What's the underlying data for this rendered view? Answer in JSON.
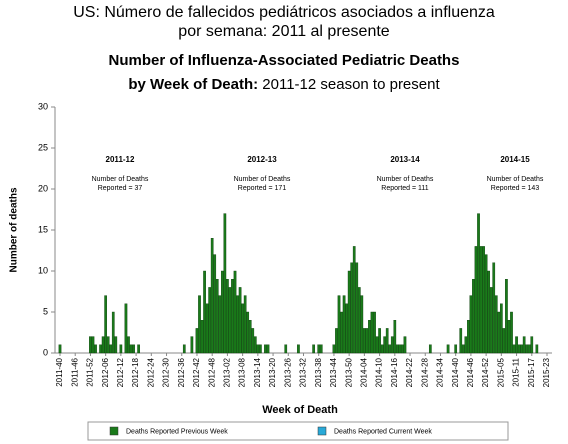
{
  "chart_data": {
    "type": "bar",
    "title_lines": [
      "US: Número de fallecidos pediátricos asociados a influenza",
      "por semana: 2011 al presente"
    ],
    "title": "Number of Influenza-Associated Pediatric Deaths",
    "subtitle_bold": "by Week of Death:",
    "subtitle": "2011-12 season to present",
    "y_label": "Number of deaths",
    "x_label": "Week of Death",
    "ylim": [
      0,
      30
    ],
    "yticks": [
      0,
      5,
      10,
      15,
      20,
      25,
      30
    ],
    "categories": [
      "2011-40",
      null,
      null,
      null,
      null,
      null,
      "2011-46",
      null,
      null,
      null,
      null,
      null,
      "2011-52",
      null,
      null,
      null,
      null,
      null,
      "2012-06",
      null,
      null,
      null,
      null,
      null,
      "2012-12",
      null,
      null,
      null,
      null,
      null,
      "2012-18",
      null,
      null,
      null,
      null,
      null,
      "2012-24",
      null,
      null,
      null,
      null,
      null,
      "2012-30",
      null,
      null,
      null,
      null,
      null,
      "2012-36",
      null,
      null,
      null,
      null,
      null,
      "2012-42",
      null,
      null,
      null,
      null,
      null,
      "2012-48",
      null,
      null,
      null,
      null,
      null,
      "2013-02",
      null,
      null,
      null,
      null,
      null,
      "2013-08",
      null,
      null,
      null,
      null,
      null,
      "2013-14",
      null,
      null,
      null,
      null,
      null,
      "2013-20",
      null,
      null,
      null,
      null,
      null,
      "2013-26",
      null,
      null,
      null,
      null,
      null,
      "2013-32",
      null,
      null,
      null,
      null,
      null,
      "2013-38",
      null,
      null,
      null,
      null,
      null,
      "2013-44",
      null,
      null,
      null,
      null,
      null,
      "2013-50",
      null,
      null,
      null,
      null,
      null,
      "2014-04",
      null,
      null,
      null,
      null,
      null,
      "2014-10",
      null,
      null,
      null,
      null,
      null,
      "2014-16",
      null,
      null,
      null,
      null,
      null,
      "2014-22",
      null,
      null,
      null,
      null,
      null,
      "2014-28",
      null,
      null,
      null,
      null,
      null,
      "2014-34",
      null,
      null,
      null,
      null,
      null,
      "2014-40",
      null,
      null,
      null,
      null,
      null,
      "2014-46",
      null,
      null,
      null,
      null,
      null,
      "2014-52",
      null,
      null,
      null,
      null,
      null,
      "2015-05",
      null,
      null,
      null,
      null,
      null,
      "2015-11",
      null,
      null,
      null,
      null,
      null,
      "2015-17",
      null,
      null,
      null,
      null,
      null,
      "2015-23"
    ],
    "series": [
      {
        "name": "Deaths Reported Previous Week",
        "color": "#1a7a1a",
        "values": [
          1,
          0,
          0,
          0,
          0,
          0,
          0,
          0,
          0,
          0,
          0,
          0,
          2,
          2,
          1,
          0,
          1,
          2,
          7,
          2,
          1,
          5,
          2,
          0,
          1,
          0,
          6,
          2,
          1,
          1,
          0,
          1,
          0,
          0,
          0,
          0,
          0,
          0,
          0,
          0,
          0,
          0,
          0,
          0,
          0,
          0,
          0,
          0,
          0,
          1,
          0,
          0,
          2,
          0,
          3,
          7,
          4,
          10,
          6,
          8,
          14,
          12,
          9,
          7,
          10,
          17,
          9,
          8,
          9,
          10,
          7,
          8,
          6,
          7,
          5,
          4,
          3,
          2,
          1,
          1,
          0,
          1,
          1,
          0,
          0,
          0,
          0,
          0,
          0,
          1,
          0,
          0,
          0,
          0,
          1,
          0,
          0,
          0,
          0,
          0,
          1,
          0,
          1,
          1,
          0,
          0,
          0,
          0,
          1,
          3,
          7,
          5,
          7,
          6,
          10,
          11,
          13,
          11,
          8,
          7,
          3,
          3,
          4,
          5,
          5,
          2,
          3,
          1,
          2,
          3,
          1,
          2,
          4,
          1,
          1,
          1,
          2,
          0,
          0,
          0,
          0,
          0,
          0,
          0,
          0,
          0,
          1,
          0,
          0,
          0,
          0,
          0,
          0,
          1,
          0,
          0,
          1,
          0,
          3,
          1,
          2,
          4,
          7,
          9,
          13,
          17,
          13,
          13,
          12,
          10,
          8,
          11,
          7,
          5,
          6,
          3,
          9,
          4,
          5,
          1,
          2,
          1,
          1,
          2,
          1,
          1,
          2,
          0,
          1,
          0,
          0,
          0,
          0
        ]
      },
      {
        "name": "Deaths Reported Current Week",
        "color": "#29a9d8",
        "values": [
          0,
          0,
          0,
          0,
          0,
          0,
          0,
          0,
          0,
          0,
          0,
          0,
          0,
          0,
          0,
          0,
          0,
          0,
          0,
          0,
          0,
          0,
          0,
          0,
          0,
          0,
          0,
          0,
          0,
          0,
          0,
          0,
          0,
          0,
          0,
          0,
          0,
          0,
          0,
          0,
          0,
          0,
          0,
          0,
          0,
          0,
          0,
          0,
          0,
          0,
          0,
          0,
          0,
          0,
          0,
          0,
          0,
          0,
          0,
          0,
          0,
          0,
          0,
          0,
          0,
          0,
          0,
          0,
          0,
          0,
          0,
          0,
          0,
          0,
          0,
          0,
          0,
          0,
          0,
          0,
          0,
          0,
          0,
          0,
          0,
          0,
          0,
          0,
          0,
          0,
          0,
          0,
          0,
          0,
          0,
          0,
          0,
          0,
          0,
          0,
          0,
          0,
          0,
          0,
          0,
          0,
          0,
          0,
          0,
          0,
          0,
          0,
          0,
          0,
          0,
          0,
          0,
          0,
          0,
          0,
          0,
          0,
          0,
          0,
          0,
          0,
          0,
          0,
          0,
          0,
          0,
          0,
          0,
          0,
          0,
          0,
          0,
          0,
          0,
          0,
          0,
          0,
          0,
          0,
          0,
          0,
          0,
          0,
          0,
          0,
          0,
          0,
          0,
          0,
          0,
          0,
          0,
          0,
          0,
          0,
          0,
          0,
          0,
          0,
          0,
          0,
          0,
          0,
          0,
          0,
          0,
          0,
          0,
          0,
          0,
          0,
          0,
          0,
          0,
          0,
          0,
          0,
          0,
          0,
          0,
          0,
          0,
          0,
          0,
          0,
          0,
          0,
          0
        ]
      }
    ],
    "annotations": [
      {
        "title": "2011-12",
        "lines": [
          "Number of Deaths",
          "Reported = 37"
        ]
      },
      {
        "title": "2012-13",
        "lines": [
          "Number of Deaths",
          "Reported = 171"
        ]
      },
      {
        "title": "2013-14",
        "lines": [
          "Number of Deaths",
          "Reported = 111"
        ]
      },
      {
        "title": "2014-15",
        "lines": [
          "Number of Deaths",
          "Reported = 143"
        ]
      }
    ]
  }
}
